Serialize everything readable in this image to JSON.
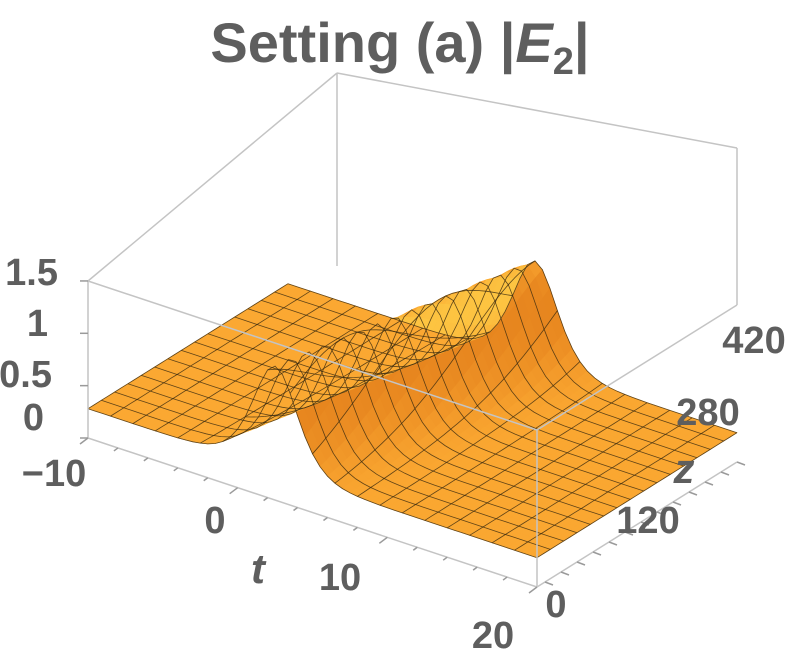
{
  "chart_data": {
    "type": "surface3d",
    "title_main": "Setting (a) |",
    "title_var": "E",
    "title_sub": "2",
    "title_end": "|",
    "x": {
      "label": "t",
      "range": [
        -10,
        20
      ],
      "ticks": [
        "−10",
        "0",
        "10",
        "20"
      ],
      "tick_values": [
        -10,
        0,
        10,
        20
      ]
    },
    "y": {
      "label": "z",
      "range": [
        0,
        500
      ],
      "ticks": [
        "0",
        "120",
        "280",
        "420"
      ],
      "tick_values": [
        0,
        120,
        280,
        420
      ]
    },
    "z": {
      "range": [
        0,
        1.5
      ],
      "ticks": [
        "0",
        "0.5",
        "1",
        "1.5"
      ],
      "tick_values": [
        0,
        0.5,
        1,
        1.5
      ]
    },
    "surface": {
      "description_values": {
        "background_level": 0.28,
        "peak_level": 1.28,
        "peak_t_at_z0": 6.5,
        "peak_t_at_zmax": 2.5,
        "peak_width": 3.2
      }
    },
    "colors": {
      "surface_light": "#ffd84a",
      "surface_mid": "#fba832",
      "surface_dark": "#e07412",
      "mesh": "#3a2a10",
      "box": "#b9b9b9",
      "text": "#5e5e5e"
    }
  }
}
